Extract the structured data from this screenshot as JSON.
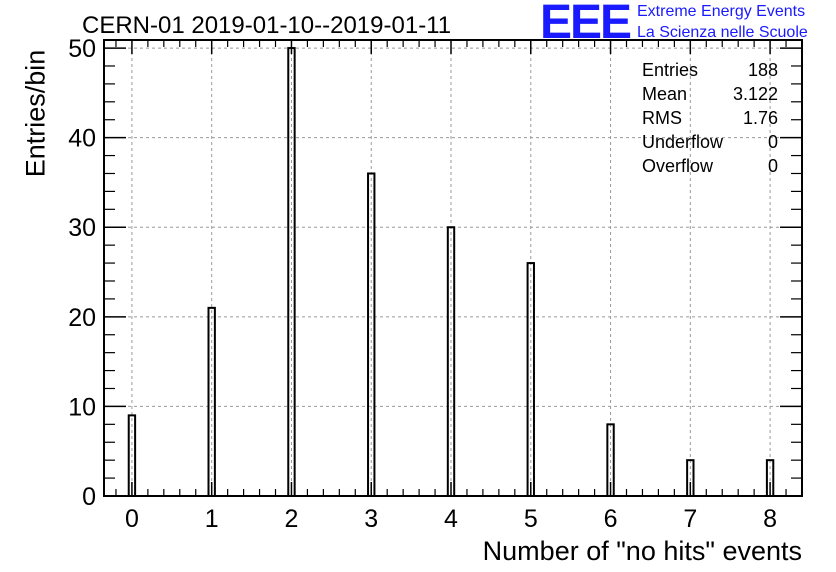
{
  "title": "CERN-01 2019-01-10--2019-01-11",
  "logo": {
    "mark": "EEE",
    "line1": "Extreme Energy Events",
    "line2": "La Scienza nelle Scuole",
    "color": "#1a1aff"
  },
  "stats": [
    {
      "label": "Entries",
      "value": "188"
    },
    {
      "label": "Mean",
      "value": "3.122"
    },
    {
      "label": "RMS",
      "value": "1.76"
    },
    {
      "label": "Underflow",
      "value": "0"
    },
    {
      "label": "Overflow",
      "value": "0"
    }
  ],
  "chart_data": {
    "type": "bar",
    "title": "CERN-01 2019-01-10--2019-01-11",
    "xlabel": "Number of \"no hits\" events",
    "ylabel": "Entries/bin",
    "categories": [
      "0",
      "1",
      "2",
      "3",
      "4",
      "5",
      "6",
      "7",
      "8"
    ],
    "x": [
      0,
      1,
      2,
      3,
      4,
      5,
      6,
      7,
      8
    ],
    "values": [
      9,
      21,
      50,
      36,
      30,
      26,
      8,
      4,
      4
    ],
    "xlim": [
      -0.35,
      8.4
    ],
    "ylim": [
      0,
      50.9
    ],
    "xticks": [
      0,
      1,
      2,
      3,
      4,
      5,
      6,
      7,
      8
    ],
    "yticks": [
      0,
      10,
      20,
      30,
      40,
      50
    ],
    "grid": true,
    "bar_color": "#000000"
  }
}
